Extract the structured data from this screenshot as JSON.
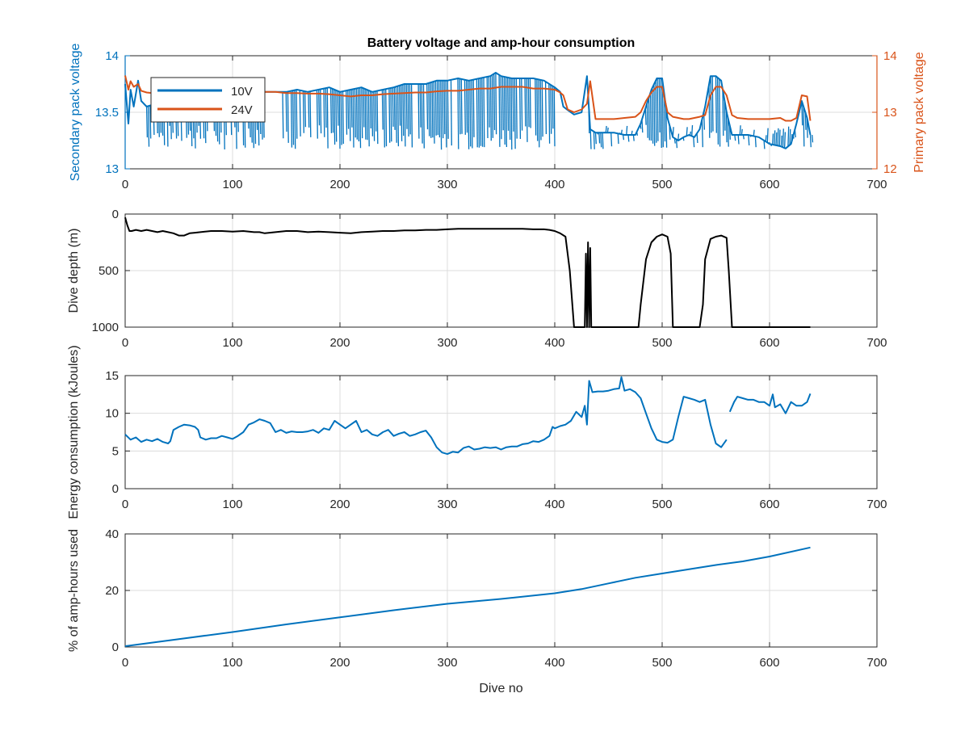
{
  "colors": {
    "blue": "#0072BD",
    "orange": "#D95319",
    "black": "#000000",
    "grid": "#dcdcdc",
    "axis": "#262626"
  },
  "chart_data": [
    {
      "type": "line",
      "title": "Battery voltage and amp-hour consumption",
      "xlabel": "",
      "xlim": [
        0,
        700
      ],
      "xticks": [
        0,
        100,
        200,
        300,
        400,
        500,
        600,
        700
      ],
      "grid": true,
      "legend": {
        "placement": "top-left",
        "entries": [
          "10V",
          "24V"
        ]
      },
      "left_axis": {
        "label": "Secondary pack voltage",
        "ylim": [
          13,
          14
        ],
        "yticks": [
          13,
          13.5,
          14
        ]
      },
      "right_axis": {
        "label": "Primary pack voltage",
        "ylim": [
          12,
          14
        ],
        "yticks": [
          12,
          13,
          14
        ]
      },
      "series": [
        {
          "name": "10V",
          "axis": "left",
          "x": [
            0,
            3,
            5,
            8,
            12,
            15,
            20,
            30,
            40,
            50,
            60,
            70,
            80,
            90,
            100,
            110,
            120,
            125,
            130,
            140,
            150,
            160,
            170,
            180,
            190,
            200,
            210,
            220,
            230,
            240,
            250,
            260,
            270,
            280,
            290,
            300,
            310,
            320,
            330,
            340,
            345,
            350,
            360,
            370,
            380,
            390,
            400,
            405,
            408,
            412,
            418,
            425,
            430,
            433,
            438,
            445,
            455,
            465,
            475,
            480,
            485,
            490,
            495,
            500,
            505,
            510,
            515,
            520,
            525,
            530,
            535,
            540,
            545,
            550,
            555,
            560,
            565,
            570,
            580,
            590,
            600,
            610,
            615,
            620,
            625,
            630,
            635,
            638
          ],
          "y": [
            13.75,
            13.4,
            13.7,
            13.55,
            13.78,
            13.6,
            13.55,
            13.58,
            13.6,
            13.5,
            13.55,
            13.58,
            13.65,
            13.62,
            13.6,
            13.62,
            13.62,
            13.55,
            13.68,
            13.68,
            13.68,
            13.7,
            13.68,
            13.7,
            13.72,
            13.68,
            13.7,
            13.72,
            13.68,
            13.7,
            13.72,
            13.75,
            13.75,
            13.75,
            13.78,
            13.78,
            13.8,
            13.78,
            13.8,
            13.82,
            13.85,
            13.82,
            13.8,
            13.8,
            13.8,
            13.78,
            13.72,
            13.68,
            13.55,
            13.52,
            13.48,
            13.5,
            13.82,
            13.35,
            13.32,
            13.32,
            13.32,
            13.3,
            13.3,
            13.4,
            13.55,
            13.7,
            13.8,
            13.8,
            13.45,
            13.28,
            13.25,
            13.28,
            13.3,
            13.28,
            13.35,
            13.55,
            13.82,
            13.82,
            13.78,
            13.5,
            13.3,
            13.3,
            13.3,
            13.28,
            13.22,
            13.2,
            13.18,
            13.22,
            13.4,
            13.6,
            13.45,
            13.3
          ],
          "dips_to": 13.25,
          "dip_ranges": [
            [
              20,
              130
            ],
            [
              145,
              400
            ],
            [
              430,
              640
            ]
          ]
        },
        {
          "name": "24V",
          "axis": "right",
          "x": [
            0,
            3,
            5,
            8,
            12,
            15,
            20,
            30,
            40,
            50,
            60,
            70,
            80,
            90,
            100,
            110,
            120,
            130,
            140,
            150,
            160,
            170,
            180,
            190,
            200,
            210,
            220,
            230,
            240,
            250,
            260,
            270,
            280,
            290,
            300,
            310,
            320,
            330,
            340,
            350,
            360,
            370,
            380,
            390,
            400,
            405,
            408,
            412,
            418,
            425,
            430,
            433,
            438,
            445,
            455,
            465,
            475,
            480,
            485,
            490,
            495,
            500,
            505,
            510,
            515,
            520,
            525,
            530,
            535,
            540,
            545,
            550,
            555,
            560,
            565,
            570,
            580,
            590,
            600,
            610,
            615,
            620,
            625,
            630,
            635,
            638
          ],
          "y": [
            13.65,
            13.4,
            13.55,
            13.45,
            13.5,
            13.38,
            13.35,
            13.33,
            13.32,
            13.32,
            13.35,
            13.38,
            13.38,
            13.38,
            13.38,
            13.36,
            13.36,
            13.36,
            13.36,
            13.34,
            13.34,
            13.33,
            13.33,
            13.32,
            13.3,
            13.28,
            13.3,
            13.3,
            13.32,
            13.33,
            13.34,
            13.35,
            13.35,
            13.37,
            13.38,
            13.38,
            13.4,
            13.42,
            13.42,
            13.45,
            13.45,
            13.45,
            13.42,
            13.42,
            13.4,
            13.35,
            13.3,
            13.05,
            13.0,
            13.05,
            13.15,
            13.55,
            12.88,
            12.88,
            12.88,
            12.9,
            12.92,
            13.0,
            13.2,
            13.35,
            13.45,
            13.45,
            13.0,
            12.92,
            12.9,
            12.88,
            12.88,
            12.9,
            12.92,
            12.95,
            13.3,
            13.45,
            13.45,
            13.3,
            12.95,
            12.9,
            12.88,
            12.88,
            12.88,
            12.9,
            12.85,
            12.85,
            12.9,
            13.3,
            13.28,
            12.85
          ]
        }
      ]
    },
    {
      "type": "line",
      "title": "",
      "xlabel": "",
      "ylabel": "Dive depth (m)",
      "xlim": [
        0,
        700
      ],
      "xticks": [
        0,
        100,
        200,
        300,
        400,
        500,
        600,
        700
      ],
      "ylim": [
        0,
        1000
      ],
      "yticks": [
        0,
        500,
        1000
      ],
      "y_reversed": true,
      "grid": true,
      "series": [
        {
          "name": "",
          "x": [
            0,
            2,
            4,
            6,
            10,
            15,
            20,
            25,
            30,
            35,
            40,
            45,
            50,
            55,
            60,
            65,
            70,
            80,
            90,
            100,
            110,
            120,
            125,
            130,
            140,
            150,
            160,
            170,
            180,
            190,
            200,
            210,
            220,
            230,
            240,
            250,
            260,
            270,
            280,
            290,
            300,
            310,
            320,
            330,
            340,
            350,
            360,
            370,
            380,
            390,
            395,
            400,
            405,
            410,
            414,
            418,
            425,
            428,
            429,
            430,
            431,
            432,
            433,
            434,
            436,
            440,
            450,
            460,
            470,
            478,
            480,
            485,
            490,
            495,
            500,
            505,
            508,
            510,
            520,
            530,
            535,
            538,
            540,
            545,
            550,
            555,
            560,
            562,
            565,
            580,
            600,
            620,
            635,
            638
          ],
          "y": [
            30,
            100,
            150,
            150,
            140,
            150,
            140,
            150,
            160,
            150,
            160,
            170,
            190,
            190,
            170,
            165,
            160,
            150,
            150,
            155,
            150,
            160,
            160,
            170,
            160,
            150,
            150,
            160,
            155,
            160,
            165,
            170,
            160,
            155,
            150,
            150,
            145,
            145,
            140,
            140,
            135,
            130,
            130,
            130,
            130,
            130,
            130,
            130,
            135,
            135,
            140,
            150,
            170,
            200,
            500,
            1000,
            1000,
            1000,
            350,
            1000,
            250,
            1000,
            300,
            1000,
            1000,
            1000,
            1000,
            1000,
            1000,
            1000,
            800,
            400,
            250,
            200,
            180,
            200,
            350,
            1000,
            1000,
            1000,
            1000,
            800,
            400,
            220,
            200,
            190,
            210,
            500,
            1000,
            1000,
            1000,
            1000,
            1000,
            1000
          ]
        }
      ]
    },
    {
      "type": "line",
      "title": "",
      "xlabel": "",
      "ylabel": "Energy consumption (kJoules)",
      "xlim": [
        0,
        700
      ],
      "xticks": [
        0,
        100,
        200,
        300,
        400,
        500,
        600,
        700
      ],
      "ylim": [
        0,
        15
      ],
      "yticks": [
        0,
        5,
        10,
        15
      ],
      "grid": true,
      "series": [
        {
          "name": "",
          "segments": [
            {
              "x": [
                0,
                5,
                10,
                15,
                20,
                25,
                30,
                35,
                40,
                42,
                45,
                50,
                55,
                60,
                65,
                68,
                70,
                75,
                80,
                85,
                90,
                95,
                100,
                105,
                110,
                115,
                120,
                125,
                130,
                135,
                140,
                145,
                150,
                155,
                160,
                165,
                170,
                175,
                180,
                185,
                190,
                195,
                200,
                205,
                210,
                215,
                220,
                225,
                230,
                235,
                240,
                245,
                250,
                255,
                260,
                265,
                270,
                275,
                280,
                285,
                290,
                295,
                300,
                305,
                310,
                315,
                320,
                325,
                330,
                335,
                340,
                345,
                350,
                355,
                360,
                365,
                370,
                375,
                380,
                385,
                390,
                395,
                398,
                400,
                405,
                410,
                415,
                420,
                425,
                428,
                430,
                432,
                435,
                440,
                445,
                450,
                455,
                460,
                462,
                465,
                470,
                475,
                480,
                485,
                490,
                495,
                500,
                505,
                510,
                515,
                520,
                525,
                530,
                535,
                540,
                545,
                550,
                555,
                560
              ],
              "y": [
                7.2,
                6.5,
                6.8,
                6.2,
                6.5,
                6.3,
                6.6,
                6.2,
                6.0,
                6.3,
                7.8,
                8.2,
                8.5,
                8.4,
                8.2,
                7.8,
                6.8,
                6.5,
                6.7,
                6.7,
                7.0,
                6.8,
                6.6,
                7.0,
                7.5,
                8.5,
                8.8,
                9.2,
                9.0,
                8.7,
                7.5,
                7.8,
                7.4,
                7.6,
                7.5,
                7.5,
                7.6,
                7.8,
                7.4,
                8.0,
                7.8,
                9.0,
                8.5,
                8.0,
                8.5,
                9.0,
                7.5,
                7.8,
                7.2,
                7.0,
                7.5,
                7.8,
                7.0,
                7.3,
                7.5,
                7.0,
                7.2,
                7.5,
                7.7,
                6.8,
                5.5,
                4.8,
                4.6,
                4.9,
                4.8,
                5.4,
                5.6,
                5.2,
                5.3,
                5.5,
                5.4,
                5.5,
                5.2,
                5.5,
                5.6,
                5.6,
                5.9,
                6.0,
                6.3,
                6.2,
                6.5,
                7.0,
                8.2,
                8.0,
                8.3,
                8.5,
                9.0,
                10.2,
                9.5,
                11.0,
                8.5,
                14.3,
                12.8,
                12.9,
                12.9,
                13.0,
                13.2,
                13.3,
                14.8,
                13.0,
                13.2,
                12.8,
                12.0,
                10.0,
                8.0,
                6.5,
                6.2,
                6.1,
                6.5,
                9.5,
                12.2,
                12.0,
                11.8,
                11.5,
                11.8,
                8.5,
                6.0,
                5.5,
                6.5
              ]
            },
            {
              "x": [
                563,
                567,
                570,
                575,
                580,
                585,
                590,
                595,
                600,
                603,
                605,
                610,
                615,
                620,
                625,
                630,
                635,
                638
              ],
              "y": [
                10.2,
                11.5,
                12.2,
                12.0,
                11.8,
                11.8,
                11.5,
                11.5,
                11.0,
                12.5,
                10.8,
                11.2,
                10.0,
                11.5,
                11.0,
                11.0,
                11.5,
                12.6
              ]
            }
          ]
        }
      ]
    },
    {
      "type": "line",
      "title": "",
      "xlabel": "Dive no",
      "ylabel": "% of amp-hours used",
      "xlim": [
        0,
        700
      ],
      "xticks": [
        0,
        100,
        200,
        300,
        400,
        500,
        600,
        700
      ],
      "ylim": [
        0,
        40
      ],
      "yticks": [
        0,
        20,
        40
      ],
      "grid": true,
      "series": [
        {
          "name": "",
          "x": [
            0,
            50,
            100,
            150,
            200,
            250,
            300,
            350,
            400,
            425,
            450,
            475,
            500,
            525,
            550,
            575,
            600,
            638
          ],
          "y": [
            0.3,
            2.8,
            5.3,
            8.0,
            10.5,
            13.0,
            15.3,
            17.0,
            19.0,
            20.5,
            22.5,
            24.5,
            26.0,
            27.5,
            29.0,
            30.3,
            32.0,
            35.2
          ]
        }
      ]
    }
  ]
}
